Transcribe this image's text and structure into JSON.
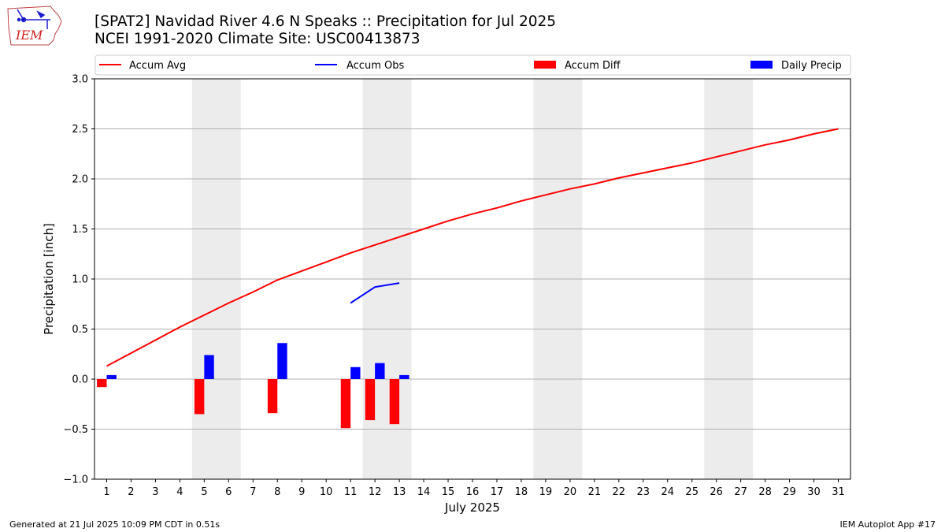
{
  "header": {
    "logo_text": "IEM",
    "title_line1": "[SPAT2] Navidad River 4.6 N Speaks :: Precipitation for Jul 2025",
    "title_line2": "NCEI 1991-2020 Climate Site: USC00413873"
  },
  "footer": {
    "generated": "Generated at 21 Jul 2025 10:09 PM CDT in 0.51s",
    "app": "IEM Autoplot App #17"
  },
  "chart_data": {
    "type": "bar",
    "xlabel": "July 2025",
    "ylabel": "Precipitation [inch]",
    "xlim": [
      0.5,
      31.5
    ],
    "ylim": [
      -1.0,
      3.0
    ],
    "yticks": [
      -1.0,
      -0.5,
      0.0,
      0.5,
      1.0,
      1.5,
      2.0,
      2.5,
      3.0
    ],
    "ytick_labels": [
      "−1.0",
      "−0.5",
      "0.0",
      "0.5",
      "1.0",
      "1.5",
      "2.0",
      "2.5",
      "3.0"
    ],
    "categories": [
      "1",
      "2",
      "3",
      "4",
      "5",
      "6",
      "7",
      "8",
      "9",
      "10",
      "11",
      "12",
      "13",
      "14",
      "15",
      "16",
      "17",
      "18",
      "19",
      "20",
      "21",
      "22",
      "23",
      "24",
      "25",
      "26",
      "27",
      "28",
      "29",
      "30",
      "31"
    ],
    "grid": "horizontal",
    "legend_position": "top",
    "weekend_shading": [
      [
        4.5,
        6.5
      ],
      [
        11.5,
        13.5
      ],
      [
        18.5,
        20.5
      ],
      [
        25.5,
        27.5
      ]
    ],
    "series": [
      {
        "name": "Accum Avg",
        "kind": "line",
        "color": "#ff0000",
        "x": [
          1,
          2,
          3,
          4,
          5,
          6,
          7,
          8,
          9,
          10,
          11,
          12,
          13,
          14,
          15,
          16,
          17,
          18,
          19,
          20,
          21,
          22,
          23,
          24,
          25,
          26,
          27,
          28,
          29,
          30,
          31
        ],
        "y": [
          0.13,
          0.26,
          0.39,
          0.52,
          0.64,
          0.76,
          0.87,
          0.99,
          1.08,
          1.17,
          1.26,
          1.34,
          1.42,
          1.5,
          1.58,
          1.65,
          1.71,
          1.78,
          1.84,
          1.9,
          1.95,
          2.01,
          2.06,
          2.11,
          2.16,
          2.22,
          2.28,
          2.34,
          2.39,
          2.45,
          2.5
        ]
      },
      {
        "name": "Accum Obs",
        "kind": "line",
        "color": "#0000ff",
        "x": [
          11,
          12,
          13
        ],
        "y": [
          0.76,
          0.92,
          0.96
        ]
      },
      {
        "name": "Accum Diff",
        "kind": "bar",
        "color": "#ff0000",
        "x": [
          1,
          5,
          8,
          11,
          12,
          13
        ],
        "y": [
          -0.08,
          -0.35,
          -0.34,
          -0.49,
          -0.41,
          -0.45
        ]
      },
      {
        "name": "Daily Precip",
        "kind": "bar",
        "color": "#0000ff",
        "x": [
          1,
          5,
          8,
          11,
          12,
          13
        ],
        "y": [
          0.04,
          0.24,
          0.36,
          0.12,
          0.16,
          0.04
        ]
      }
    ]
  }
}
